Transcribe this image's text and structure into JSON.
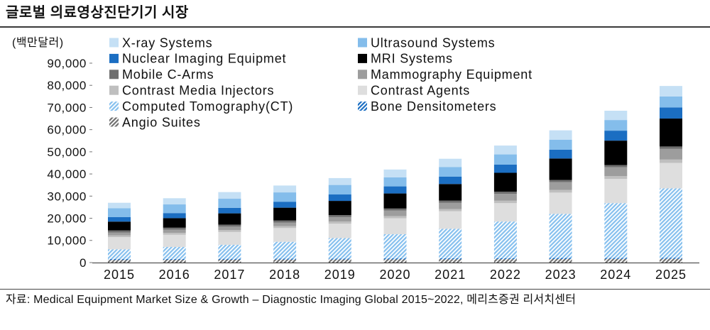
{
  "source": "자료: Medical Equipment Market Size & Growth – Diagnostic Imaging Global 2015~2022, 메리츠증권 리서치센터",
  "chart_data": {
    "type": "bar",
    "stacked": true,
    "title": "글로벌 의료영상진단기기 시장",
    "ylabel": "(백만달러)",
    "xlabel": "",
    "ylim": [
      0,
      90000
    ],
    "yticks": [
      0,
      10000,
      20000,
      30000,
      40000,
      50000,
      60000,
      70000,
      80000,
      90000
    ],
    "ytick_labels": [
      "0",
      "10,000",
      "20,000",
      "30,000",
      "40,000",
      "50,000",
      "60,000",
      "70,000",
      "80,000",
      "90,000"
    ],
    "grid": false,
    "legend_position": "top-left",
    "categories": [
      "2015",
      "2016",
      "2017",
      "2018",
      "2019",
      "2020",
      "2021",
      "2022",
      "2023",
      "2024",
      "2025"
    ],
    "series": [
      {
        "name": "X-ray Systems",
        "color": "#c5e0f5",
        "fill": "solid",
        "values": [
          2500,
          2800,
          3000,
          3100,
          3100,
          3500,
          3700,
          4000,
          4200,
          4200,
          4700
        ]
      },
      {
        "name": "Ultrasound Systems",
        "color": "#84bdeb",
        "fill": "solid",
        "values": [
          4000,
          3900,
          4100,
          4200,
          4300,
          4100,
          4400,
          4600,
          4500,
          4800,
          5000
        ]
      },
      {
        "name": "Nuclear Imaging Equipmet",
        "color": "#1b6ec2",
        "fill": "solid",
        "values": [
          2000,
          2300,
          2500,
          2700,
          2900,
          3200,
          3300,
          3700,
          4000,
          4500,
          5000
        ]
      },
      {
        "name": "MRI Systems",
        "color": "#000000",
        "fill": "solid",
        "values": [
          4000,
          4300,
          5100,
          5800,
          6400,
          6800,
          7500,
          8500,
          9700,
          11000,
          12600
        ]
      },
      {
        "name": "Mobile C-Arms",
        "color": "#6e6e6e",
        "fill": "solid",
        "values": [
          900,
          900,
          900,
          900,
          900,
          900,
          1000,
          1000,
          1000,
          1000,
          1100
        ]
      },
      {
        "name": "Mammography Equipment",
        "color": "#9d9d9d",
        "fill": "solid",
        "values": [
          1300,
          1400,
          1500,
          1600,
          2000,
          2500,
          2800,
          3100,
          3500,
          4000,
          4800
        ]
      },
      {
        "name": "Contrast Media Injectors",
        "color": "#bfbfbf",
        "fill": "solid",
        "values": [
          800,
          900,
          900,
          900,
          1000,
          1000,
          1000,
          1100,
          1200,
          1300,
          1500
        ]
      },
      {
        "name": "Contrast Agents",
        "color": "#dedede",
        "fill": "solid",
        "values": [
          5500,
          5500,
          5800,
          6200,
          6500,
          7200,
          7900,
          8300,
          9600,
          10900,
          11500
        ]
      },
      {
        "name": "Computed Tomography(CT)",
        "color": "#86c0ee",
        "fill": "hatched",
        "values": [
          4400,
          5400,
          6300,
          7600,
          9200,
          10900,
          13300,
          16500,
          19900,
          24700,
          31300
        ]
      },
      {
        "name": "Bone Densitometers",
        "color": "#1b6ec2",
        "fill": "hatched",
        "values": [
          400,
          400,
          420,
          430,
          440,
          450,
          460,
          470,
          480,
          490,
          500
        ]
      },
      {
        "name": "Angio Suites",
        "color": "#707070",
        "fill": "hatched",
        "values": [
          1200,
          1250,
          1300,
          1350,
          1400,
          1450,
          1500,
          1550,
          1600,
          1650,
          1700
        ]
      }
    ]
  }
}
